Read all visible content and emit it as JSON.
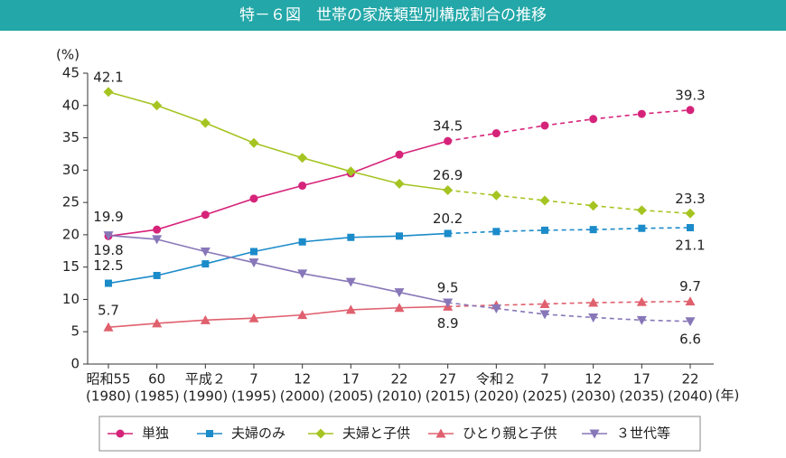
{
  "chart_data": {
    "type": "line",
    "title": "特－６図　世帯の家族類型別構成割合の推移",
    "y_unit": "(%)",
    "x_unit": "(年)",
    "categories": [
      "昭和55",
      "60",
      "平成２",
      "7",
      "12",
      "17",
      "22",
      "27",
      "令和２",
      "7",
      "12",
      "17",
      "22"
    ],
    "category_years": [
      "(1980)",
      "(1985)",
      "(1990)",
      "(1995)",
      "(2000)",
      "(2005)",
      "(2010)",
      "(2015)",
      "(2020)",
      "(2025)",
      "(2030)",
      "(2035)",
      "(2040)"
    ],
    "ylim": [
      0,
      45
    ],
    "yticks": [
      0,
      5,
      10,
      15,
      20,
      25,
      30,
      35,
      40,
      45
    ],
    "dashed_from_index": 7,
    "series": [
      {
        "name": "単独",
        "color": "#d6237a",
        "marker": "circle",
        "labeled": [
          0,
          7,
          12
        ],
        "values": [
          19.8,
          20.8,
          23.1,
          25.6,
          27.6,
          29.5,
          32.4,
          34.5,
          35.7,
          36.9,
          37.9,
          38.7,
          39.3
        ]
      },
      {
        "name": "夫婦のみ",
        "color": "#1b8bc9",
        "marker": "square",
        "labeled": [
          0,
          7,
          12
        ],
        "values": [
          12.5,
          13.7,
          15.5,
          17.4,
          18.9,
          19.6,
          19.8,
          20.2,
          20.5,
          20.7,
          20.8,
          21.0,
          21.1
        ]
      },
      {
        "name": "夫婦と子供",
        "color": "#a5c422",
        "marker": "diamond",
        "labeled": [
          0,
          7,
          12
        ],
        "values": [
          42.1,
          40.0,
          37.3,
          34.2,
          31.9,
          29.8,
          27.9,
          26.9,
          26.1,
          25.3,
          24.5,
          23.8,
          23.3
        ]
      },
      {
        "name": "ひとり親と子供",
        "color": "#e0606e",
        "marker": "triangle-up",
        "labeled": [
          0,
          7,
          12
        ],
        "values": [
          5.7,
          6.3,
          6.8,
          7.1,
          7.6,
          8.4,
          8.7,
          8.9,
          9.1,
          9.3,
          9.5,
          9.6,
          9.7
        ]
      },
      {
        "name": "３世代等",
        "color": "#8877b8",
        "marker": "triangle-down",
        "labeled": [
          0,
          7,
          12
        ],
        "values": [
          19.9,
          19.3,
          17.4,
          15.7,
          14.0,
          12.7,
          11.1,
          9.5,
          8.6,
          7.7,
          7.2,
          6.8,
          6.6
        ]
      }
    ]
  }
}
